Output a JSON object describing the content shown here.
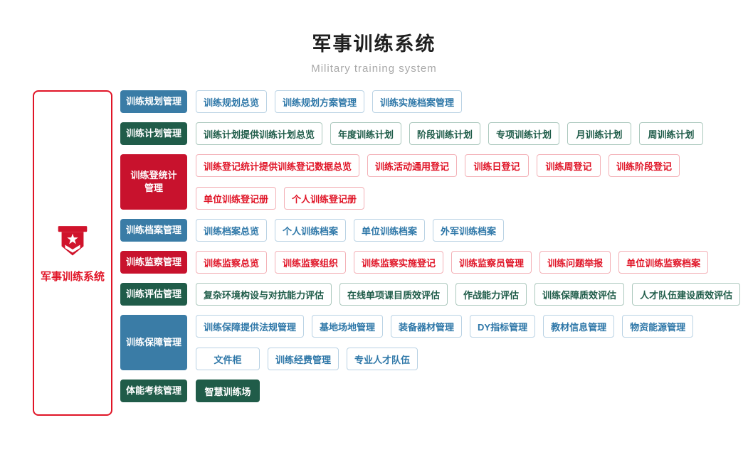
{
  "header": {
    "title": "军事训练系统",
    "subtitle": "Military training system"
  },
  "sidebar": {
    "label": "军事训练系统",
    "icon": "military-emblem-icon",
    "border_color": "#e01527"
  },
  "themes": {
    "blue": {
      "solid_bg": "#3a7ca6",
      "item_text": "#2e77a8",
      "item_border": "#b9d2e4"
    },
    "green": {
      "solid_bg": "#205c49",
      "item_text": "#1f5c49",
      "item_border": "#abc8bd"
    },
    "red": {
      "solid_bg": "#c8122d",
      "item_text": "#e01527",
      "item_border": "#f3b0b6"
    }
  },
  "rows": [
    {
      "id": "planning",
      "category": "训练规划管理",
      "theme": "blue",
      "lines": [
        [
          "训练规划总览",
          "训练规划方案管理",
          "训练实施档案管理"
        ]
      ]
    },
    {
      "id": "plan",
      "category": "训练计划管理",
      "theme": "green",
      "lines": [
        [
          "训练计划提供训练计划总览",
          "年度训练计划",
          "阶段训练计划",
          "专项训练计划",
          "月训练计划",
          "周训练计划"
        ]
      ]
    },
    {
      "id": "registration-stats",
      "category": "训练登统计\n管理",
      "theme": "red",
      "lines": [
        [
          "训练登记统计提供训练登记数据总览",
          "训练活动通用登记",
          "训练日登记",
          "训练周登记",
          "训练阶段登记"
        ],
        [
          "单位训练登记册",
          "个人训练登记册"
        ]
      ]
    },
    {
      "id": "archives",
      "category": "训练档案管理",
      "theme": "blue",
      "lines": [
        [
          "训练档案总览",
          "个人训练档案",
          "单位训练档案",
          "外军训练档案"
        ]
      ]
    },
    {
      "id": "supervision",
      "category": "训练监察管理",
      "theme": "red",
      "lines": [
        [
          "训练监察总览",
          "训练监察组织",
          "训练监察实施登记",
          "训练监察员管理",
          "训练问题举报",
          "单位训练监察档案"
        ]
      ]
    },
    {
      "id": "evaluation",
      "category": "训练评估管理",
      "theme": "green",
      "lines": [
        [
          "复杂环境构设与对抗能力评估",
          "在线单项课目质效评估",
          "作战能力评估",
          "训练保障质效评估",
          "人才队伍建设质效评估"
        ]
      ]
    },
    {
      "id": "support",
      "category": "训练保障管理",
      "theme": "blue",
      "lines": [
        [
          "训练保障提供法规管理",
          "基地场地管理",
          "装备器材管理",
          "DY指标管理",
          "教材信息管理",
          "物资能源管理"
        ],
        [
          "文件柜",
          "训练经费管理",
          "专业人才队伍"
        ]
      ]
    },
    {
      "id": "physical-assessment",
      "category": "体能考核管理",
      "theme": "green",
      "items_solid": true,
      "lines": [
        [
          "智慧训练场"
        ]
      ]
    }
  ]
}
